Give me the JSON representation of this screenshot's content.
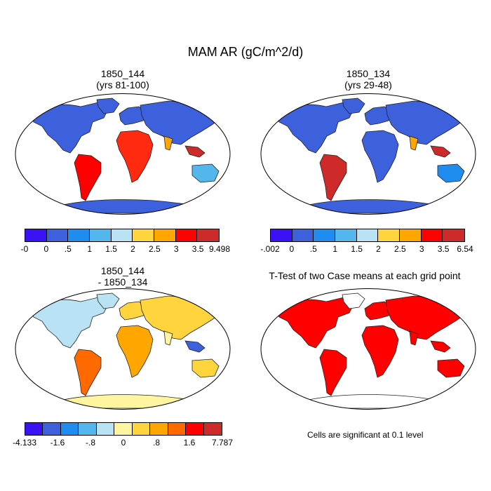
{
  "title": "MAM AR (gC/m^2/d)",
  "panels": [
    {
      "id": "p1",
      "title_line1": "1850_144",
      "title_line2": "(yrs 81-100)",
      "colorbar": {
        "colors": [
          "#3b12f5",
          "#3d61dd",
          "#1f8cf0",
          "#53b7ee",
          "#b9e3f4",
          "#ffd43d",
          "#ffa600",
          "#ff0000",
          "#cf2a2a"
        ],
        "labels": [
          "-0",
          "0",
          ".5",
          "1",
          "1.5",
          "2",
          "2.5",
          "3",
          "3.5",
          "9.498"
        ]
      }
    },
    {
      "id": "p2",
      "title_line1": "1850_134",
      "title_line2": "(yrs 29-48)",
      "colorbar": {
        "colors": [
          "#3b12f5",
          "#3d61dd",
          "#1f8cf0",
          "#53b7ee",
          "#b9e3f4",
          "#ffd43d",
          "#ffa600",
          "#ff0000",
          "#cf2a2a"
        ],
        "labels": [
          "-.002",
          "0",
          ".5",
          "1",
          "1.5",
          "2",
          "2.5",
          "3",
          "3.5",
          "6.54"
        ]
      }
    },
    {
      "id": "p3",
      "title_line1": "1850_144",
      "title_line2": "- 1850_134",
      "colorbar": {
        "colors": [
          "#3b12f5",
          "#3d61dd",
          "#1f8cf0",
          "#53b7ee",
          "#b9e3f4",
          "#fff4a0",
          "#ffd43d",
          "#ffa600",
          "#ff6a00",
          "#ff0000",
          "#cf2a2a"
        ],
        "labels": [
          "-4.133",
          "-1.6",
          "-.8",
          "0",
          ".8",
          "1.6",
          "7.787"
        ]
      }
    },
    {
      "id": "p4",
      "title_line1": "T-Test of two Case means at each grid point",
      "title_line2": "",
      "note": "Cells are significant at 0.1 level"
    }
  ]
}
